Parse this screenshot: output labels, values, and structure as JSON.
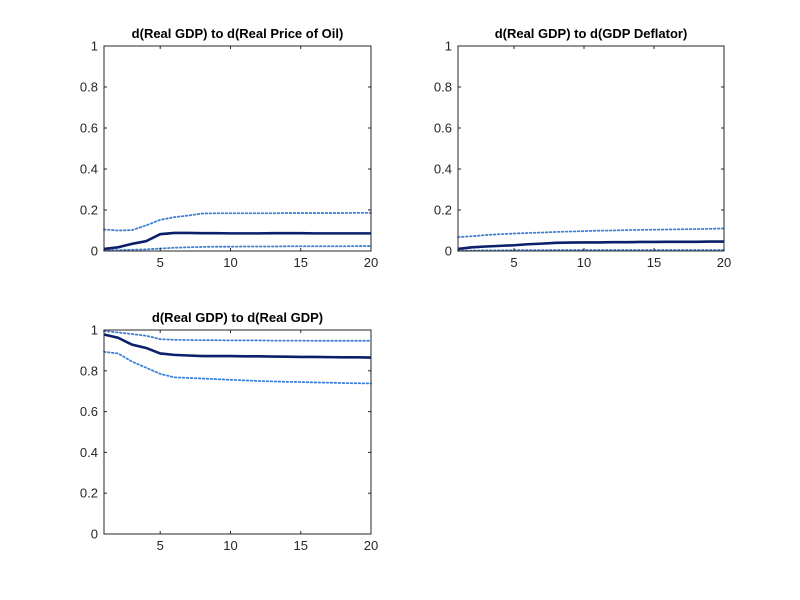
{
  "colors": {
    "estimate": "#0b1f6b",
    "band": "#3b7fd8",
    "axis": "#262626"
  },
  "chart_data": [
    {
      "type": "line",
      "title": "d(Real GDP) to d(Real Price of Oil)",
      "xlabel": "",
      "ylabel": "",
      "xlim": [
        1,
        20
      ],
      "ylim": [
        0,
        1
      ],
      "xticks": [
        5,
        10,
        15,
        20
      ],
      "yticks": [
        0,
        0.2,
        0.4,
        0.6,
        0.8,
        1
      ],
      "grid": false,
      "x": [
        1,
        2,
        3,
        4,
        5,
        6,
        7,
        8,
        9,
        10,
        11,
        12,
        13,
        14,
        15,
        16,
        17,
        18,
        19,
        20
      ],
      "series": [
        {
          "role": "estimate",
          "style": "solid",
          "values": [
            0.01,
            0.018,
            0.035,
            0.048,
            0.082,
            0.088,
            0.088,
            0.087,
            0.087,
            0.086,
            0.086,
            0.086,
            0.087,
            0.087,
            0.087,
            0.086,
            0.086,
            0.086,
            0.086,
            0.086
          ]
        },
        {
          "role": "upper",
          "style": "dotted",
          "values": [
            0.105,
            0.1,
            0.102,
            0.125,
            0.152,
            0.165,
            0.173,
            0.183,
            0.184,
            0.184,
            0.184,
            0.184,
            0.184,
            0.185,
            0.185,
            0.185,
            0.185,
            0.185,
            0.186,
            0.186
          ]
        },
        {
          "role": "lower",
          "style": "dotted",
          "values": [
            0.003,
            0.004,
            0.006,
            0.008,
            0.012,
            0.016,
            0.018,
            0.02,
            0.021,
            0.021,
            0.022,
            0.022,
            0.022,
            0.023,
            0.023,
            0.023,
            0.023,
            0.023,
            0.024,
            0.024
          ]
        }
      ]
    },
    {
      "type": "line",
      "title": "d(Real GDP) to d(GDP Deflator)",
      "xlabel": "",
      "ylabel": "",
      "xlim": [
        1,
        20
      ],
      "ylim": [
        0,
        1
      ],
      "xticks": [
        5,
        10,
        15,
        20
      ],
      "yticks": [
        0,
        0.2,
        0.4,
        0.6,
        0.8,
        1
      ],
      "grid": false,
      "x": [
        1,
        2,
        3,
        4,
        5,
        6,
        7,
        8,
        9,
        10,
        11,
        12,
        13,
        14,
        15,
        16,
        17,
        18,
        19,
        20
      ],
      "series": [
        {
          "role": "estimate",
          "style": "solid",
          "values": [
            0.01,
            0.018,
            0.022,
            0.025,
            0.028,
            0.033,
            0.036,
            0.04,
            0.041,
            0.042,
            0.042,
            0.043,
            0.043,
            0.044,
            0.044,
            0.045,
            0.045,
            0.045,
            0.046,
            0.046
          ]
        },
        {
          "role": "upper",
          "style": "dotted",
          "values": [
            0.068,
            0.072,
            0.078,
            0.082,
            0.085,
            0.088,
            0.09,
            0.093,
            0.095,
            0.097,
            0.099,
            0.1,
            0.102,
            0.103,
            0.104,
            0.105,
            0.106,
            0.107,
            0.108,
            0.11
          ]
        },
        {
          "role": "lower",
          "style": "dotted",
          "values": [
            0.001,
            0.002,
            0.003,
            0.003,
            0.004,
            0.004,
            0.004,
            0.005,
            0.005,
            0.005,
            0.005,
            0.005,
            0.005,
            0.005,
            0.005,
            0.005,
            0.005,
            0.005,
            0.005,
            0.005
          ]
        }
      ]
    },
    {
      "type": "line",
      "title": "d(Real GDP) to d(Real GDP)",
      "xlabel": "",
      "ylabel": "",
      "xlim": [
        1,
        20
      ],
      "ylim": [
        0,
        1
      ],
      "xticks": [
        5,
        10,
        15,
        20
      ],
      "yticks": [
        0,
        0.2,
        0.4,
        0.6,
        0.8,
        1
      ],
      "grid": false,
      "x": [
        1,
        2,
        3,
        4,
        5,
        6,
        7,
        8,
        9,
        10,
        11,
        12,
        13,
        14,
        15,
        16,
        17,
        18,
        19,
        20
      ],
      "series": [
        {
          "role": "estimate",
          "style": "solid",
          "values": [
            0.978,
            0.962,
            0.928,
            0.912,
            0.885,
            0.878,
            0.875,
            0.872,
            0.872,
            0.872,
            0.871,
            0.871,
            0.87,
            0.869,
            0.868,
            0.868,
            0.867,
            0.866,
            0.866,
            0.865
          ]
        },
        {
          "role": "upper",
          "style": "dotted",
          "values": [
            0.995,
            0.988,
            0.98,
            0.972,
            0.955,
            0.952,
            0.951,
            0.95,
            0.95,
            0.949,
            0.949,
            0.949,
            0.948,
            0.948,
            0.948,
            0.947,
            0.947,
            0.947,
            0.947,
            0.947
          ]
        },
        {
          "role": "lower",
          "style": "dotted",
          "values": [
            0.893,
            0.885,
            0.845,
            0.815,
            0.785,
            0.768,
            0.765,
            0.762,
            0.759,
            0.756,
            0.753,
            0.75,
            0.748,
            0.746,
            0.745,
            0.743,
            0.742,
            0.74,
            0.739,
            0.738
          ]
        }
      ]
    }
  ]
}
